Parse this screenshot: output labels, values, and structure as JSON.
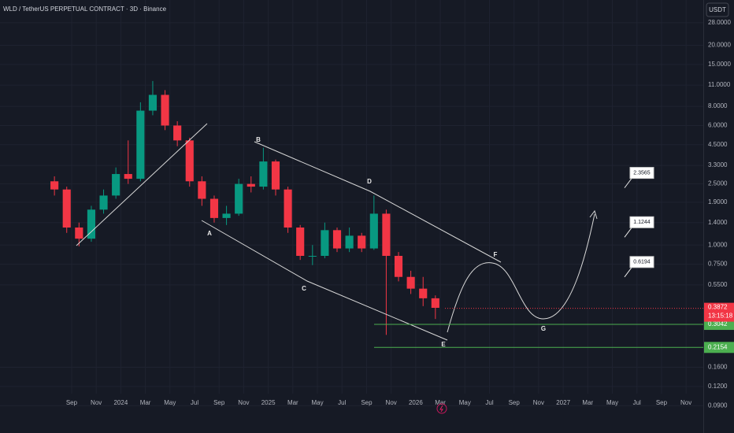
{
  "chart_data": {
    "type": "candlestick",
    "title": "WLD / TetherUS PERPETUAL CONTRACT · 3D · Binance",
    "currency": "USDT",
    "log_scale": true,
    "grid": true,
    "up_color": "#089981",
    "down_color": "#f23645",
    "x": [
      -1.4,
      -0.4,
      0.6,
      1.6,
      2.6,
      3.6,
      4.6,
      5.6,
      6.6,
      7.6,
      8.6,
      9.6,
      10.6,
      11.6,
      12.6,
      13.6,
      14.6,
      15.6,
      16.6,
      17.6,
      18.6,
      19.6,
      20.6,
      21.6,
      22.6,
      23.6,
      24.6,
      25.6,
      26.6,
      27.6,
      28.6,
      29.6
    ],
    "open": [
      2.6,
      2.3,
      1.3,
      1.1,
      1.7,
      2.1,
      2.9,
      2.7,
      7.5,
      9.5,
      6.0,
      4.8,
      2.6,
      2.0,
      1.5,
      1.6,
      2.5,
      2.4,
      3.5,
      2.3,
      1.3,
      0.85,
      0.85,
      1.25,
      0.95,
      1.15,
      0.95,
      1.6,
      0.85,
      0.62,
      0.52,
      0.45
    ],
    "high": [
      2.8,
      2.4,
      1.4,
      1.8,
      2.3,
      3.2,
      4.8,
      8.5,
      11.7,
      10.2,
      6.4,
      5.0,
      2.8,
      2.1,
      1.8,
      2.7,
      2.8,
      4.3,
      3.6,
      2.4,
      1.35,
      1.0,
      1.4,
      1.3,
      1.3,
      1.2,
      2.1,
      1.7,
      0.9,
      0.68,
      0.62,
      0.47
    ],
    "low": [
      2.1,
      1.2,
      0.98,
      1.05,
      1.6,
      2.0,
      2.5,
      2.6,
      7.0,
      5.6,
      4.4,
      2.4,
      1.8,
      1.4,
      1.35,
      1.55,
      2.2,
      2.3,
      2.1,
      1.2,
      0.8,
      0.74,
      0.82,
      0.9,
      0.9,
      0.9,
      0.93,
      0.26,
      0.58,
      0.48,
      0.4,
      0.33
    ],
    "close": [
      2.3,
      1.3,
      1.1,
      1.7,
      2.1,
      2.9,
      2.7,
      7.5,
      9.5,
      6.0,
      4.8,
      2.6,
      2.0,
      1.5,
      1.6,
      2.5,
      2.4,
      3.5,
      2.3,
      1.3,
      0.85,
      0.85,
      1.25,
      0.95,
      1.15,
      0.95,
      1.6,
      0.85,
      0.62,
      0.52,
      0.45,
      0.39
    ],
    "xlim": [
      -5.83,
      51.4
    ],
    "ylim": [
      0.0756,
      39.4
    ],
    "xticks": [
      {
        "value": 0,
        "label": "Sep"
      },
      {
        "value": 2,
        "label": "Nov"
      },
      {
        "value": 4,
        "label": "2024"
      },
      {
        "value": 6,
        "label": "Mar"
      },
      {
        "value": 8,
        "label": "May"
      },
      {
        "value": 10,
        "label": "Jul"
      },
      {
        "value": 12,
        "label": "Sep"
      },
      {
        "value": 14,
        "label": "Nov"
      },
      {
        "value": 16,
        "label": "2025"
      },
      {
        "value": 18,
        "label": "Mar"
      },
      {
        "value": 20,
        "label": "May"
      },
      {
        "value": 22,
        "label": "Jul"
      },
      {
        "value": 24,
        "label": "Sep"
      },
      {
        "value": 26,
        "label": "Nov"
      },
      {
        "value": 28,
        "label": "2026"
      },
      {
        "value": 30,
        "label": "Mar"
      },
      {
        "value": 32,
        "label": "May"
      },
      {
        "value": 34,
        "label": "Jul"
      },
      {
        "value": 36,
        "label": "Sep"
      },
      {
        "value": 38,
        "label": "Nov"
      },
      {
        "value": 40,
        "label": "2027"
      },
      {
        "value": 42,
        "label": "Mar"
      },
      {
        "value": 44,
        "label": "May"
      },
      {
        "value": 46,
        "label": "Jul"
      },
      {
        "value": 48,
        "label": "Sep"
      },
      {
        "value": 50,
        "label": "Nov"
      }
    ],
    "yticks": [
      {
        "value": 28,
        "label": "28.0000"
      },
      {
        "value": 20,
        "label": "20.0000"
      },
      {
        "value": 15,
        "label": "15.0000"
      },
      {
        "value": 11,
        "label": "11.0000"
      },
      {
        "value": 8,
        "label": "8.0000"
      },
      {
        "value": 6,
        "label": "6.0000"
      },
      {
        "value": 4.5,
        "label": "4.5000"
      },
      {
        "value": 3.3,
        "label": "3.3000"
      },
      {
        "value": 2.5,
        "label": "2.5000"
      },
      {
        "value": 1.9,
        "label": "1.9000"
      },
      {
        "value": 1.4,
        "label": "1.4000"
      },
      {
        "value": 1,
        "label": "1.0000"
      },
      {
        "value": 0.75,
        "label": "0.7500"
      },
      {
        "value": 0.55,
        "label": "0.5500"
      },
      {
        "value": 0.16,
        "label": "0.1600"
      },
      {
        "value": 0.12,
        "label": "0.1200"
      },
      {
        "value": 0.09,
        "label": "0.0900"
      }
    ],
    "levels": [
      0.3042,
      0.2154
    ],
    "level_color": "#4caf50",
    "last_price": 0.3872,
    "countdown": "13:15:18",
    "targets": [
      2.3565,
      1.1244,
      0.6194
    ],
    "wave_labels": [
      "A",
      "B",
      "C",
      "D",
      "E",
      "F",
      "G"
    ]
  }
}
